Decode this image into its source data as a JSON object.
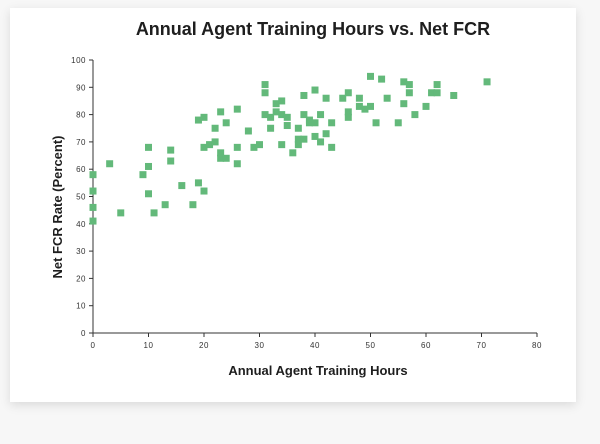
{
  "chart_data": {
    "type": "scatter",
    "title": "Annual Agent Training Hours vs. Net FCR",
    "xlabel": "Annual Agent Training Hours",
    "ylabel": "Net FCR Rate (Percent)",
    "xlim": [
      0,
      80
    ],
    "ylim": [
      0,
      100
    ],
    "x_ticks": [
      0,
      10,
      20,
      30,
      40,
      50,
      60,
      70,
      80
    ],
    "y_ticks": [
      0,
      10,
      20,
      30,
      40,
      50,
      60,
      70,
      80,
      90,
      100
    ],
    "grid": false,
    "marker": "square",
    "color": "#63b97a",
    "points": [
      [
        0,
        58
      ],
      [
        0,
        52
      ],
      [
        0,
        46
      ],
      [
        0,
        41
      ],
      [
        3,
        62
      ],
      [
        5,
        44
      ],
      [
        9,
        58
      ],
      [
        10,
        68
      ],
      [
        10,
        61
      ],
      [
        10,
        51
      ],
      [
        11,
        44
      ],
      [
        13,
        47
      ],
      [
        14,
        67
      ],
      [
        14,
        63
      ],
      [
        16,
        54
      ],
      [
        18,
        47
      ],
      [
        19,
        55
      ],
      [
        19,
        78
      ],
      [
        20,
        79
      ],
      [
        20,
        68
      ],
      [
        20,
        52
      ],
      [
        21,
        69
      ],
      [
        22,
        75
      ],
      [
        22,
        70
      ],
      [
        23,
        81
      ],
      [
        23,
        66
      ],
      [
        23,
        64
      ],
      [
        24,
        77
      ],
      [
        24,
        64
      ],
      [
        26,
        82
      ],
      [
        26,
        68
      ],
      [
        26,
        62
      ],
      [
        28,
        74
      ],
      [
        29,
        68
      ],
      [
        30,
        69
      ],
      [
        31,
        91
      ],
      [
        31,
        88
      ],
      [
        31,
        80
      ],
      [
        32,
        75
      ],
      [
        32,
        79
      ],
      [
        33,
        81
      ],
      [
        33,
        84
      ],
      [
        34,
        85
      ],
      [
        34,
        80
      ],
      [
        34,
        69
      ],
      [
        35,
        76
      ],
      [
        35,
        79
      ],
      [
        36,
        66
      ],
      [
        37,
        75
      ],
      [
        37,
        69
      ],
      [
        37,
        71
      ],
      [
        38,
        87
      ],
      [
        38,
        80
      ],
      [
        38,
        71
      ],
      [
        39,
        78
      ],
      [
        39,
        77
      ],
      [
        40,
        89
      ],
      [
        40,
        77
      ],
      [
        40,
        72
      ],
      [
        41,
        80
      ],
      [
        41,
        70
      ],
      [
        42,
        86
      ],
      [
        42,
        73
      ],
      [
        43,
        68
      ],
      [
        43,
        77
      ],
      [
        45,
        86
      ],
      [
        46,
        81
      ],
      [
        46,
        88
      ],
      [
        46,
        79
      ],
      [
        48,
        86
      ],
      [
        48,
        83
      ],
      [
        49,
        82
      ],
      [
        50,
        94
      ],
      [
        50,
        83
      ],
      [
        51,
        77
      ],
      [
        52,
        93
      ],
      [
        53,
        86
      ],
      [
        55,
        77
      ],
      [
        56,
        92
      ],
      [
        56,
        84
      ],
      [
        57,
        91
      ],
      [
        57,
        88
      ],
      [
        58,
        80
      ],
      [
        60,
        83
      ],
      [
        61,
        88
      ],
      [
        62,
        91
      ],
      [
        62,
        88
      ],
      [
        65,
        87
      ],
      [
        71,
        92
      ]
    ]
  }
}
